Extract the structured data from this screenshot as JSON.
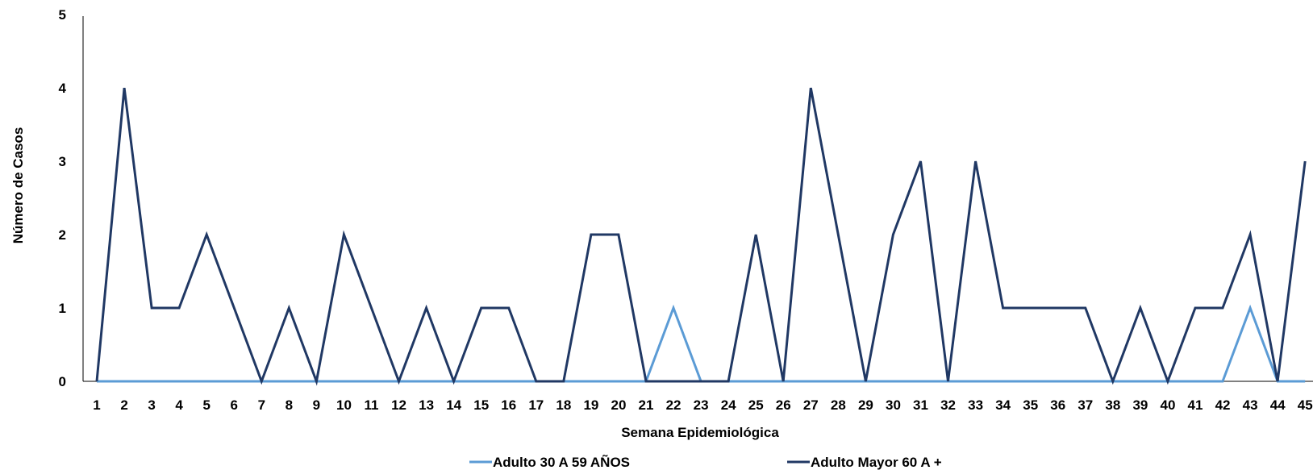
{
  "chart_data": {
    "type": "line",
    "title": "",
    "xlabel": "Semana Epidemiológica",
    "ylabel": "Número de Casos",
    "ylim": [
      0,
      5
    ],
    "yticks": [
      "0",
      "1",
      "2",
      "3",
      "4",
      "5"
    ],
    "grid": false,
    "legend_position": "bottom",
    "categories": [
      "1",
      "2",
      "3",
      "4",
      "5",
      "6",
      "7",
      "8",
      "9",
      "10",
      "11",
      "12",
      "13",
      "14",
      "15",
      "16",
      "17",
      "18",
      "19",
      "20",
      "21",
      "22",
      "23",
      "24",
      "25",
      "26",
      "27",
      "28",
      "29",
      "30",
      "31",
      "32",
      "33",
      "34",
      "35",
      "36",
      "37",
      "38",
      "39",
      "40",
      "41",
      "42",
      "43",
      "44",
      "45"
    ],
    "series": [
      {
        "name": "Adulto 30 A 59 AÑOS",
        "color": "#5b9bd5",
        "values": [
          0,
          0,
          0,
          0,
          0,
          0,
          0,
          0,
          0,
          0,
          0,
          0,
          0,
          0,
          0,
          0,
          0,
          0,
          0,
          0,
          0,
          1,
          0,
          0,
          0,
          0,
          0,
          0,
          0,
          0,
          0,
          0,
          0,
          0,
          0,
          0,
          0,
          0,
          0,
          0,
          0,
          0,
          1,
          0,
          0
        ]
      },
      {
        "name": "Adulto Mayor 60 A +",
        "color": "#203864",
        "values": [
          0,
          4,
          1,
          1,
          2,
          1,
          0,
          1,
          0,
          2,
          1,
          0,
          1,
          0,
          1,
          1,
          0,
          0,
          2,
          2,
          0,
          0,
          0,
          0,
          2,
          0,
          4,
          2,
          0,
          2,
          3,
          0,
          3,
          1,
          1,
          1,
          1,
          0,
          1,
          0,
          1,
          1,
          2,
          0,
          3
        ]
      }
    ]
  }
}
